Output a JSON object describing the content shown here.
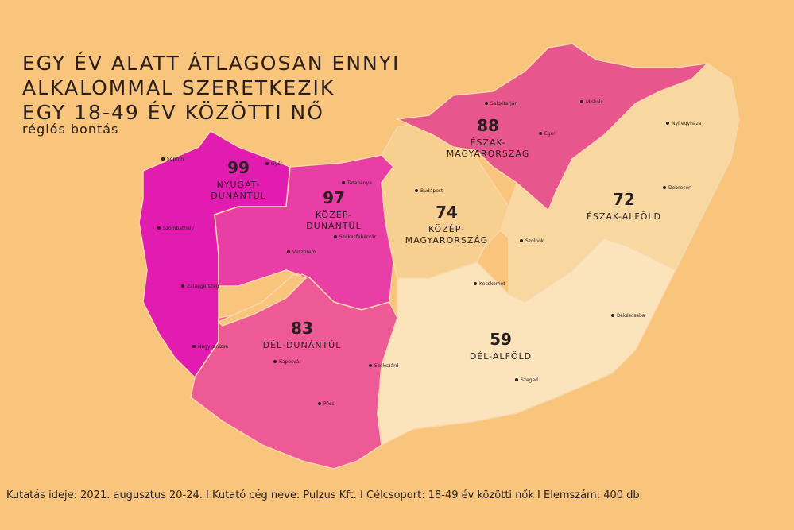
{
  "title": [
    "EGY ÉV ALATT ÁTLAGOSAN ENNYI",
    "ALKALOMMAL SZERETKEZIK",
    "EGY 18-49 ÉV KÖZÖTTI NŐ"
  ],
  "subtitle": "régiós bontás",
  "regions": [
    {
      "value": 99,
      "name": [
        "NYUGAT-",
        "DUNÁNTÚL"
      ]
    },
    {
      "value": 97,
      "name": [
        "KÖZÉP-",
        "DUNÁNTÚL"
      ]
    },
    {
      "value": 83,
      "name": [
        "DÉL-DUNÁNTÚL"
      ]
    },
    {
      "value": 74,
      "name": [
        "KÖZÉP-",
        "MAGYARORSZÁG"
      ]
    },
    {
      "value": 88,
      "name": [
        "ÉSZAK-",
        "MAGYARORSZÁG"
      ]
    },
    {
      "value": 72,
      "name": [
        "ÉSZAK-ALFÖLD"
      ]
    },
    {
      "value": 59,
      "name": [
        "DÉL-ALFÖLD"
      ]
    }
  ],
  "cities": [
    "Sopron",
    "Győr",
    "Tatabánya",
    "Szombathely",
    "Veszprém",
    "Székesfehérvár",
    "Zalaegerszeg",
    "Nagykanizsa",
    "Kaposvár",
    "Szekszárd",
    "Pécs",
    "Budapest",
    "Salgótarján",
    "Miskolc",
    "Eger",
    "Nyíregyháza",
    "Debrecen",
    "Szolnok",
    "Kecskemét",
    "Békéscsaba",
    "Szeged"
  ],
  "footer": "Kutatás ideje: 2021. augusztus 20-24. I Kutató cég neve: Pulzus Kft. I Célcsoport: 18-49 év közötti nők I Elemszám: 400 db"
}
